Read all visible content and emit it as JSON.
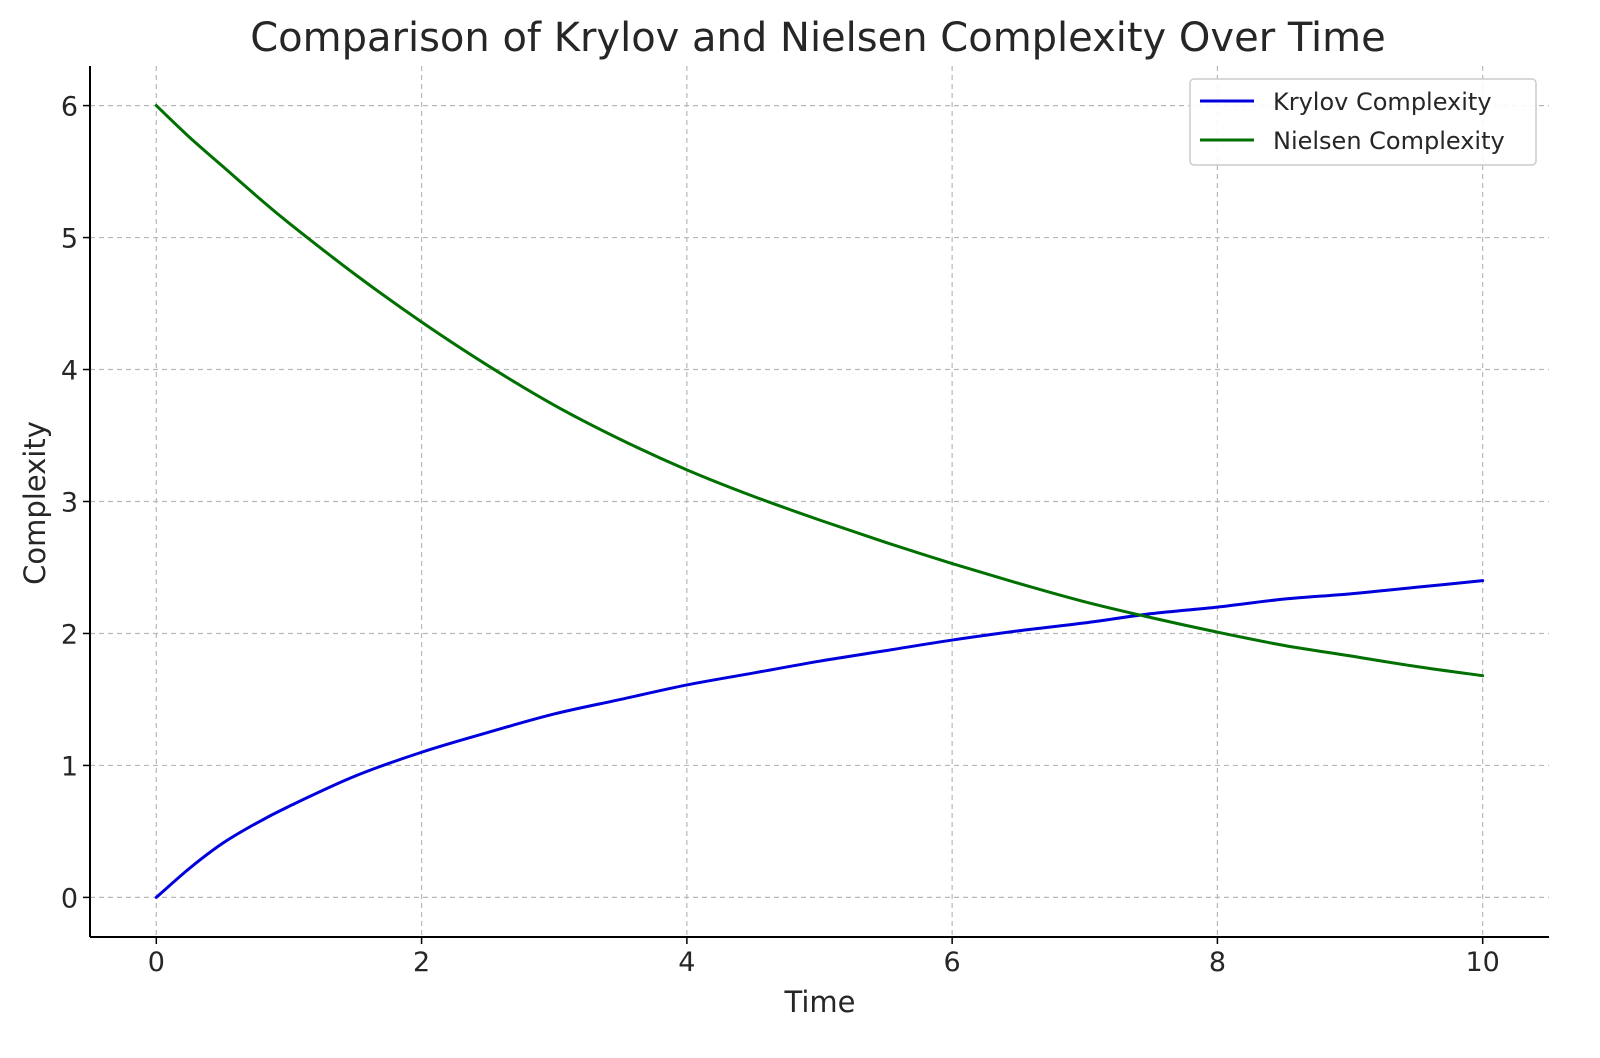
{
  "chart_data": {
    "type": "line",
    "title": "Comparison of Krylov and Nielsen Complexity Over Time",
    "xlabel": "Time",
    "ylabel": "Complexity",
    "xlim": [
      -0.5,
      10.5
    ],
    "ylim": [
      -0.3,
      6.3
    ],
    "x_ticks": [
      0,
      2,
      4,
      6,
      8,
      10
    ],
    "x_tick_labels": [
      "0",
      "2",
      "4",
      "6",
      "8",
      "10"
    ],
    "y_ticks": [
      0,
      1,
      2,
      3,
      4,
      5,
      6
    ],
    "y_tick_labels": [
      "0",
      "1",
      "2",
      "3",
      "4",
      "5",
      "6"
    ],
    "grid": true,
    "legend_position": "top-right",
    "x": [
      0,
      0.25,
      0.5,
      0.75,
      1,
      1.5,
      2,
      2.5,
      3,
      3.5,
      4,
      4.5,
      5,
      5.5,
      6,
      6.5,
      7,
      7.5,
      8,
      8.5,
      9,
      9.5,
      10
    ],
    "series": [
      {
        "name": "Krylov Complexity",
        "color": "#0000dd",
        "values": [
          0,
          0.22,
          0.41,
          0.56,
          0.69,
          0.92,
          1.1,
          1.25,
          1.39,
          1.5,
          1.61,
          1.7,
          1.79,
          1.87,
          1.95,
          2.02,
          2.08,
          2.15,
          2.2,
          2.26,
          2.3,
          2.35,
          2.4
        ]
      },
      {
        "name": "Nielsen Complexity",
        "color": "#007000",
        "values": [
          6.0,
          5.76,
          5.54,
          5.32,
          5.11,
          4.72,
          4.36,
          4.03,
          3.73,
          3.47,
          3.24,
          3.04,
          2.86,
          2.69,
          2.53,
          2.38,
          2.24,
          2.12,
          2.01,
          1.91,
          1.83,
          1.75,
          1.68
        ]
      }
    ]
  }
}
